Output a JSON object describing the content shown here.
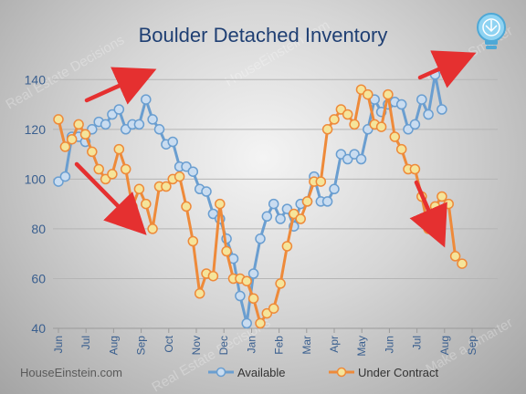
{
  "chart_data": {
    "type": "line",
    "title": "Boulder Detached Inventory",
    "xlabel": "",
    "ylabel": "",
    "ylim": [
      40,
      150
    ],
    "yticks": [
      40,
      60,
      80,
      100,
      120,
      140
    ],
    "x_tick_labels": [
      "Jun",
      "Jul",
      "Aug",
      "Sep",
      "Oct",
      "Nov",
      "Dec",
      "Jan",
      "Feb",
      "Mar",
      "Apr",
      "May",
      "Jun",
      "Jul",
      "Aug",
      "Sep"
    ],
    "points_per_month": 4.1,
    "grid": true,
    "legend_position": "bottom",
    "series": [
      {
        "name": "Available",
        "color": "#6a9ed0",
        "marker_fill": "#c9dcf0",
        "values": [
          99,
          101,
          117,
          117,
          115,
          120,
          123,
          122,
          126,
          128,
          120,
          122,
          122,
          132,
          124,
          120,
          114,
          115,
          105,
          105,
          103,
          96,
          95,
          86,
          84,
          76,
          68,
          53,
          42,
          62,
          76,
          85,
          90,
          84,
          88,
          81,
          90,
          91,
          101,
          91,
          91,
          96,
          110,
          108,
          110,
          108,
          120,
          132,
          127,
          130,
          131,
          130,
          120,
          122,
          132,
          126,
          142,
          128
        ]
      },
      {
        "name": "Under Contract",
        "color": "#ee8a3a",
        "marker_fill": "#f5e49a",
        "values": [
          124,
          113,
          116,
          122,
          118,
          111,
          104,
          100,
          102,
          112,
          104,
          89,
          96,
          90,
          80,
          97,
          97,
          100,
          101,
          89,
          75,
          54,
          62,
          61,
          90,
          71,
          60,
          60,
          59,
          52,
          42,
          46,
          48,
          58,
          73,
          86,
          84,
          91,
          99,
          99,
          120,
          124,
          128,
          126,
          122,
          136,
          134,
          122,
          121,
          134,
          117,
          112,
          104,
          104,
          93,
          80,
          89,
          93,
          90,
          69,
          66
        ]
      }
    ],
    "annotations": [
      {
        "type": "arrow",
        "direction": "up",
        "color": "#e53030"
      },
      {
        "type": "arrow",
        "direction": "down",
        "color": "#e53030"
      },
      {
        "type": "arrow",
        "direction": "up",
        "color": "#e53030"
      },
      {
        "type": "arrow",
        "direction": "down",
        "color": "#e53030"
      }
    ]
  },
  "footer": {
    "source": "HouseEinstein.com"
  },
  "watermarks": [
    "Real Estate Decisions",
    "Make a Smarter",
    "HouseEinstein.com",
    "Real Estate Decisions",
    "Make a Smarter"
  ],
  "colors": {
    "grid": "#b5b5b5",
    "axis": "#9a9a9a",
    "arrow": "#e53030",
    "title": "#1f3f73"
  },
  "icons": {
    "logo": "lightbulb-icon"
  }
}
